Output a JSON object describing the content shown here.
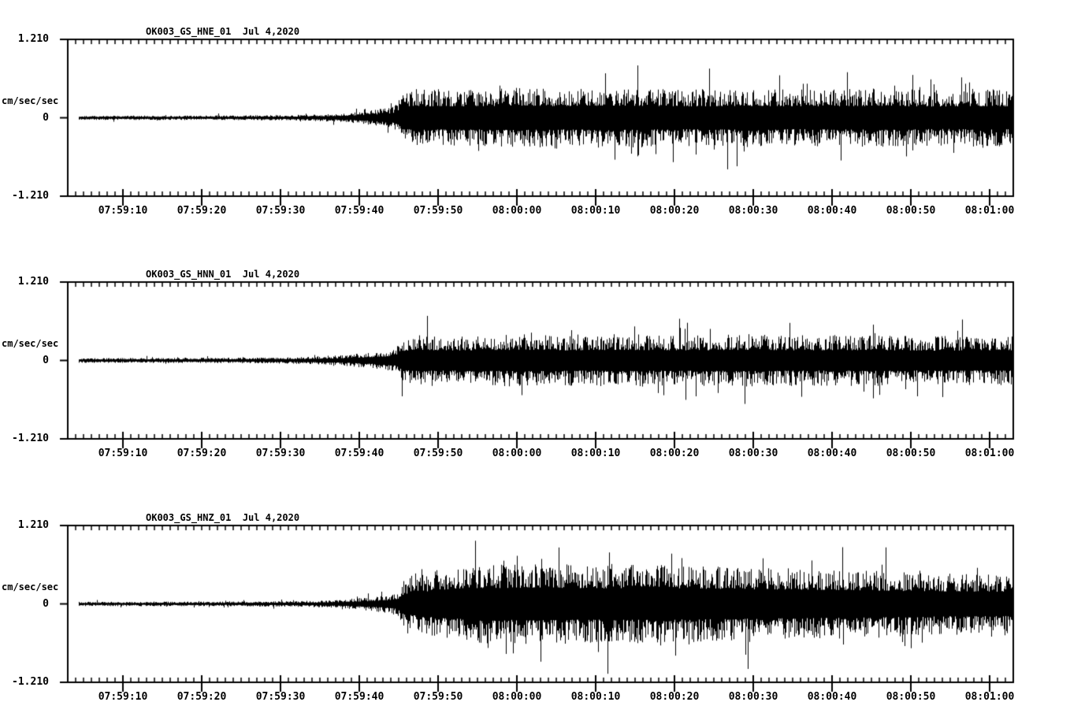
{
  "window": {
    "background": "#ffffff",
    "ink": "#000000",
    "description": "Three-channel strong-motion seismogram display"
  },
  "x_ticks": [
    "07:59:10",
    "07:59:20",
    "07:59:30",
    "07:59:40",
    "07:59:50",
    "08:00:00",
    "08:00:10",
    "08:00:20",
    "08:00:30",
    "08:00:40",
    "08:00:50",
    "08:01:00"
  ],
  "plots": [
    {
      "id": "hne",
      "title": "OK003_GS_HNE_01  Jul 4,2020",
      "y_max": "1.210",
      "y_zero": "0",
      "y_min": "-1.210",
      "unit": "cm/sec/sec"
    },
    {
      "id": "hnn",
      "title": "OK003_GS_HNN_01  Jul 4,2020",
      "y_max": "1.210",
      "y_zero": "0",
      "y_min": "-1.210",
      "unit": "cm/sec/sec"
    },
    {
      "id": "hnz",
      "title": "OK003_GS_HNZ_01  Jul 4,2020",
      "y_max": "1.210",
      "y_zero": "0",
      "y_min": "-1.210",
      "unit": "cm/sec/sec"
    }
  ],
  "chart_data": [
    {
      "type": "line",
      "title": "OK003_GS_HNE_01  Jul 4,2020",
      "series_name": "OK003_GS_HNE_01",
      "ylabel": "cm/sec/sec",
      "ylim": [
        -1.21,
        1.21
      ],
      "y_tick_values": [
        1.21,
        0,
        -1.21
      ],
      "x_tick_labels": [
        "07:59:10",
        "07:59:20",
        "07:59:30",
        "07:59:40",
        "07:59:50",
        "08:00:00",
        "08:00:10",
        "08:00:20",
        "08:00:30",
        "08:00:40",
        "08:00:50",
        "08:01:00"
      ],
      "x_span_seconds": 120,
      "x_seconds_per_minor_tick": 1,
      "x_seconds_per_major_tick": 10,
      "signal": "background noise until ~07:59:37, emergent P growth, strong S onset ~07:59:45, sustained coda to end",
      "envelope_units": "seconds-after-axis-start vs peak amplitude in cm/sec/sec",
      "envelope": [
        [
          1.4,
          0.034
        ],
        [
          20,
          0.036
        ],
        [
          28,
          0.042
        ],
        [
          33,
          0.058
        ],
        [
          36,
          0.082
        ],
        [
          38.5,
          0.115
        ],
        [
          40.5,
          0.155
        ],
        [
          41.8,
          0.21
        ],
        [
          42.4,
          0.43
        ],
        [
          44,
          0.45
        ],
        [
          50,
          0.44
        ],
        [
          57,
          0.47
        ],
        [
          63,
          0.45
        ],
        [
          70,
          0.47
        ],
        [
          78,
          0.44
        ],
        [
          86,
          0.46
        ],
        [
          94,
          0.44
        ],
        [
          102,
          0.46
        ],
        [
          110,
          0.43
        ],
        [
          116,
          0.45
        ],
        [
          120,
          0.44
        ]
      ],
      "seed": 101
    },
    {
      "type": "line",
      "title": "OK003_GS_HNN_01  Jul 4,2020",
      "series_name": "OK003_GS_HNN_01",
      "ylabel": "cm/sec/sec",
      "ylim": [
        -1.21,
        1.21
      ],
      "y_tick_values": [
        1.21,
        0,
        -1.21
      ],
      "x_tick_labels": [
        "07:59:10",
        "07:59:20",
        "07:59:30",
        "07:59:40",
        "07:59:50",
        "08:00:00",
        "08:00:10",
        "08:00:20",
        "08:00:30",
        "08:00:40",
        "08:00:50",
        "08:01:00"
      ],
      "x_span_seconds": 120,
      "x_seconds_per_minor_tick": 1,
      "x_seconds_per_major_tick": 10,
      "signal": "background noise until ~07:59:37, emergent P growth, strong S onset ~07:59:45, sustained coda to end",
      "envelope_units": "seconds-after-axis-start vs peak amplitude in cm/sec/sec",
      "envelope": [
        [
          1.4,
          0.036
        ],
        [
          20,
          0.042
        ],
        [
          28,
          0.05
        ],
        [
          33,
          0.068
        ],
        [
          36,
          0.095
        ],
        [
          38.5,
          0.125
        ],
        [
          40.5,
          0.155
        ],
        [
          41.8,
          0.2
        ],
        [
          42.4,
          0.37
        ],
        [
          44,
          0.4
        ],
        [
          50,
          0.39
        ],
        [
          57,
          0.41
        ],
        [
          63,
          0.39
        ],
        [
          70,
          0.41
        ],
        [
          78,
          0.39
        ],
        [
          86,
          0.41
        ],
        [
          94,
          0.39
        ],
        [
          102,
          0.4
        ],
        [
          110,
          0.38
        ],
        [
          116,
          0.39
        ],
        [
          120,
          0.39
        ]
      ],
      "seed": 202
    },
    {
      "type": "line",
      "title": "OK003_GS_HNZ_01  Jul 4,2020",
      "series_name": "OK003_GS_HNZ_01",
      "ylabel": "cm/sec/sec",
      "ylim": [
        -1.21,
        1.21
      ],
      "y_tick_values": [
        1.21,
        0,
        -1.21
      ],
      "x_tick_labels": [
        "07:59:10",
        "07:59:20",
        "07:59:30",
        "07:59:40",
        "07:59:50",
        "08:00:00",
        "08:00:10",
        "08:00:20",
        "08:00:30",
        "08:00:40",
        "08:00:50",
        "08:01:00"
      ],
      "x_span_seconds": 120,
      "x_seconds_per_minor_tick": 1,
      "x_seconds_per_major_tick": 10,
      "signal": "background noise until ~07:59:37, emergent P growth, strong S onset ~07:59:45, largest amplitudes 07:59:50-08:00:30, slow decay",
      "envelope_units": "seconds-after-axis-start vs peak amplitude in cm/sec/sec",
      "envelope": [
        [
          1.4,
          0.034
        ],
        [
          20,
          0.037
        ],
        [
          28,
          0.043
        ],
        [
          33,
          0.056
        ],
        [
          36,
          0.08
        ],
        [
          38.5,
          0.11
        ],
        [
          40.5,
          0.14
        ],
        [
          41.8,
          0.18
        ],
        [
          42.6,
          0.37
        ],
        [
          45,
          0.47
        ],
        [
          48,
          0.56
        ],
        [
          53,
          0.61
        ],
        [
          60,
          0.63
        ],
        [
          68,
          0.6
        ],
        [
          75,
          0.62
        ],
        [
          82,
          0.58
        ],
        [
          90,
          0.56
        ],
        [
          98,
          0.54
        ],
        [
          106,
          0.5
        ],
        [
          112,
          0.48
        ],
        [
          120,
          0.47
        ]
      ],
      "seed": 303
    }
  ]
}
